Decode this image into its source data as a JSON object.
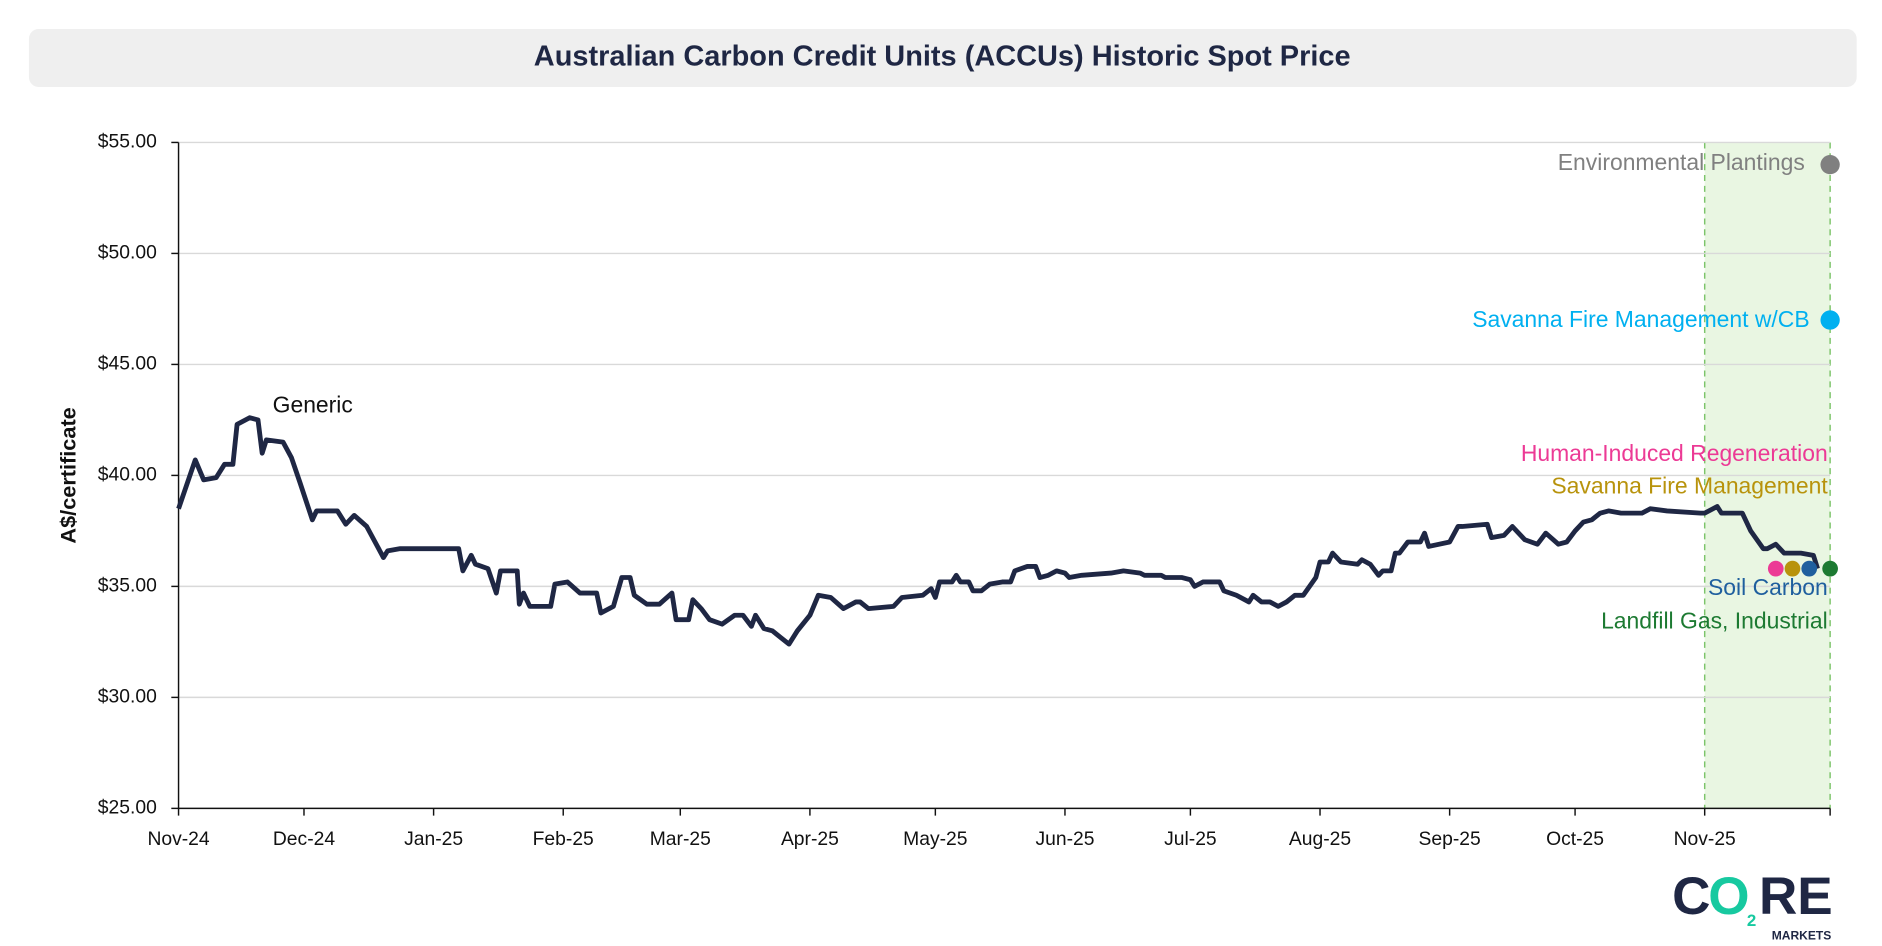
{
  "chart_data": {
    "type": "line",
    "title": "Australian Carbon Credit Units (ACCUs) Historic Spot Price",
    "y_label": "A$/certificate",
    "xlim": [
      0,
      395
    ],
    "xticks": [
      {
        "value": 0,
        "label": "Nov-24"
      },
      {
        "value": 30,
        "label": "Dec-24"
      },
      {
        "value": 61,
        "label": "Jan-25"
      },
      {
        "value": 92,
        "label": "Feb-25"
      },
      {
        "value": 120,
        "label": "Mar-25"
      },
      {
        "value": 151,
        "label": "Apr-25"
      },
      {
        "value": 181,
        "label": "May-25"
      },
      {
        "value": 212,
        "label": "Jun-25"
      },
      {
        "value": 242,
        "label": "Jul-25"
      },
      {
        "value": 273,
        "label": "Aug-25"
      },
      {
        "value": 304,
        "label": "Sep-25"
      },
      {
        "value": 334,
        "label": "Oct-25"
      },
      {
        "value": 365,
        "label": "Nov-25"
      }
    ],
    "ylim": [
      25,
      55
    ],
    "yticks": [
      {
        "value": 25,
        "label": "$25.00"
      },
      {
        "value": 30,
        "label": "$30.00"
      },
      {
        "value": 35,
        "label": "$35.00"
      },
      {
        "value": 40,
        "label": "$40.00"
      },
      {
        "value": 45,
        "label": "$45.00"
      },
      {
        "value": 50,
        "label": "$50.00"
      },
      {
        "value": 55,
        "label": "$55.00"
      }
    ],
    "grid": true,
    "shaded_region": {
      "x": [
        365,
        395
      ],
      "color": "#e9f6e2",
      "edge_color": "#7cc46a"
    },
    "series": [
      {
        "name": "Generic",
        "color": "#1f2744",
        "style": "line",
        "x": [
          0,
          4,
          6,
          9,
          11,
          13,
          14,
          17,
          19,
          20,
          21,
          25,
          27,
          29,
          32,
          33,
          38,
          40,
          42,
          45,
          47,
          49,
          50,
          53,
          67,
          68,
          70,
          71,
          74,
          76,
          77,
          81,
          81.5,
          82.5,
          84,
          89,
          90,
          93,
          96,
          100,
          101,
          104,
          106,
          108,
          109,
          112,
          115,
          118,
          119,
          122,
          123,
          125,
          127,
          130,
          133,
          135,
          137,
          138,
          140,
          142,
          144,
          146,
          148,
          151,
          153,
          156,
          159,
          162,
          163,
          165,
          171,
          173,
          178,
          180,
          181,
          182,
          185,
          186,
          187,
          189,
          190,
          192,
          194,
          197,
          199,
          200,
          203,
          205,
          206,
          208,
          210,
          212,
          213,
          216,
          223,
          226,
          230,
          231,
          235,
          236,
          240,
          242,
          243,
          245,
          249,
          250,
          253,
          256,
          257,
          259,
          261,
          263,
          265,
          267,
          269,
          272,
          273,
          275,
          276,
          278,
          282,
          283,
          285,
          287,
          288,
          290,
          291,
          292,
          294,
          297,
          298,
          299,
          304,
          306,
          307,
          313,
          314,
          317,
          319,
          322,
          325,
          327,
          330,
          332,
          334,
          336,
          338,
          340,
          342,
          345,
          348,
          350,
          352,
          356,
          364,
          365,
          368,
          369,
          373,
          374,
          376,
          379,
          380,
          382,
          384,
          388,
          391,
          392
        ],
        "values": [
          38.5,
          40.7,
          39.8,
          39.9,
          40.5,
          40.5,
          42.3,
          42.6,
          42.5,
          41.0,
          41.6,
          41.5,
          40.8,
          39.7,
          38.0,
          38.4,
          38.4,
          37.8,
          38.2,
          37.7,
          37.0,
          36.3,
          36.6,
          36.7,
          36.7,
          35.7,
          36.4,
          36.0,
          35.8,
          34.7,
          35.7,
          35.7,
          34.2,
          34.7,
          34.1,
          34.1,
          35.1,
          35.2,
          34.7,
          34.7,
          33.8,
          34.1,
          35.4,
          35.4,
          34.6,
          34.2,
          34.2,
          34.7,
          33.5,
          33.5,
          34.4,
          34.0,
          33.5,
          33.3,
          33.7,
          33.7,
          33.2,
          33.7,
          33.1,
          33.0,
          32.7,
          32.4,
          33.0,
          33.7,
          34.6,
          34.5,
          34.0,
          34.3,
          34.3,
          34.0,
          34.1,
          34.5,
          34.6,
          34.9,
          34.5,
          35.2,
          35.2,
          35.5,
          35.2,
          35.2,
          34.8,
          34.8,
          35.1,
          35.2,
          35.2,
          35.7,
          35.9,
          35.9,
          35.4,
          35.5,
          35.7,
          35.6,
          35.4,
          35.5,
          35.6,
          35.7,
          35.6,
          35.5,
          35.5,
          35.4,
          35.4,
          35.3,
          35.0,
          35.2,
          35.2,
          34.8,
          34.6,
          34.3,
          34.6,
          34.3,
          34.3,
          34.1,
          34.3,
          34.6,
          34.6,
          35.4,
          36.1,
          36.1,
          36.5,
          36.1,
          36.0,
          36.2,
          36.0,
          35.5,
          35.7,
          35.7,
          36.5,
          36.5,
          37.0,
          37.0,
          37.4,
          36.8,
          37.0,
          37.7,
          37.7,
          37.8,
          37.2,
          37.3,
          37.7,
          37.1,
          36.9,
          37.4,
          36.9,
          37.0,
          37.5,
          37.9,
          38.0,
          38.3,
          38.4,
          38.3,
          38.3,
          38.3,
          38.5,
          38.4,
          38.3,
          38.3,
          38.6,
          38.3,
          38.3,
          38.3,
          37.5,
          36.7,
          36.7,
          36.9,
          36.5,
          36.5,
          36.4,
          35.8
        ]
      },
      {
        "name": "Environmental Plantings",
        "color": "#808080",
        "style": "point",
        "x": [
          395
        ],
        "values": [
          54.0
        ]
      },
      {
        "name": "Savanna Fire Management w/CB",
        "color": "#00b0f0",
        "style": "point",
        "x": [
          395
        ],
        "values": [
          47.0
        ]
      },
      {
        "name": "Human-Induced Regeneration",
        "color": "#ec3a95",
        "style": "point",
        "x": [
          382
        ],
        "values": [
          35.8
        ]
      },
      {
        "name": "Savanna Fire Management",
        "color": "#b8930c",
        "style": "point",
        "x": [
          386
        ],
        "values": [
          35.8
        ]
      },
      {
        "name": "Soil Carbon",
        "color": "#1f5f9e",
        "style": "point",
        "x": [
          390
        ],
        "values": [
          35.8
        ]
      },
      {
        "name": "Landfill Gas, Industrial",
        "color": "#1d7a32",
        "style": "point",
        "x": [
          395
        ],
        "values": [
          35.8
        ]
      }
    ],
    "logo": {
      "first": "C",
      "ring": "O",
      "sub": "2",
      "rest": "RE",
      "tagline": "MARKETS"
    }
  }
}
